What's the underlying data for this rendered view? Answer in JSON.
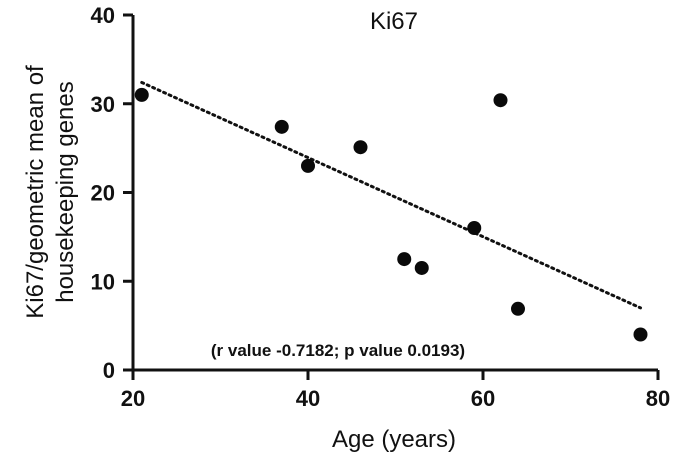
{
  "chart_data": {
    "type": "scatter",
    "title": "Ki67",
    "xlabel": "Age (years)",
    "ylabel_lines": [
      "Ki67/geometric mean of",
      "housekeeping genes"
    ],
    "xlim": [
      20,
      80
    ],
    "ylim": [
      0,
      40
    ],
    "x_ticks": [
      20,
      40,
      60,
      80
    ],
    "y_ticks": [
      0,
      10,
      20,
      30,
      40
    ],
    "grid": false,
    "series": [
      {
        "name": "Ki67",
        "x": [
          21,
          37,
          40,
          46,
          51,
          53,
          59,
          62,
          64,
          78
        ],
        "y": [
          31,
          27.4,
          23,
          25.1,
          12.5,
          11.5,
          16,
          30.4,
          6.9,
          4
        ]
      }
    ],
    "trendline": {
      "style": "dotted",
      "x": [
        21,
        78
      ],
      "y": [
        32.4,
        7
      ]
    },
    "annotation": "(r value -0.7182; p value 0.0193)"
  }
}
